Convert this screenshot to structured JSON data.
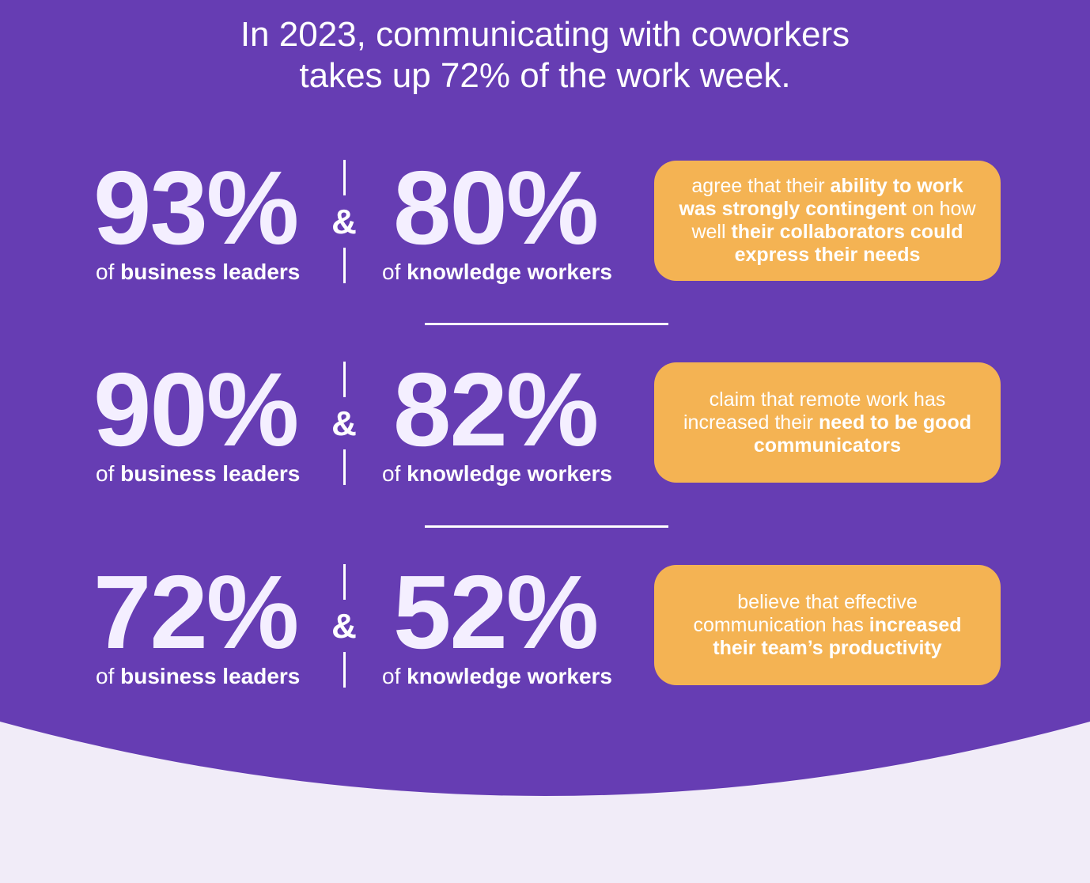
{
  "colors": {
    "panel_purple": "#663db3",
    "callout_orange": "#f4b353",
    "page_background": "#f1ecf8",
    "text_white": "#ffffff"
  },
  "header": {
    "title_line1": "In 2023, communicating with coworkers",
    "title_line2": "takes up 72% of the work week."
  },
  "stats": [
    {
      "leaders_percent": "93%",
      "leaders_prefix": "of ",
      "leaders_label": "business leaders",
      "connector": "&",
      "workers_percent": "80%",
      "workers_prefix": "of ",
      "workers_label": "knowledge workers",
      "callout": [
        {
          "text": "agree that their ",
          "bold": false
        },
        {
          "text": "ability to work was strongly contingent",
          "bold": true
        },
        {
          "text": " on how well ",
          "bold": false
        },
        {
          "text": "their collaborators could express their needs",
          "bold": true
        }
      ]
    },
    {
      "leaders_percent": "90%",
      "leaders_prefix": "of ",
      "leaders_label": "business leaders",
      "connector": "&",
      "workers_percent": "82%",
      "workers_prefix": "of ",
      "workers_label": "knowledge workers",
      "callout": [
        {
          "text": "claim that remote work has increased their ",
          "bold": false
        },
        {
          "text": "need to be good communicators",
          "bold": true
        }
      ]
    },
    {
      "leaders_percent": "72%",
      "leaders_prefix": "of ",
      "leaders_label": "business leaders",
      "connector": "&",
      "workers_percent": "52%",
      "workers_prefix": "of ",
      "workers_label": "knowledge workers",
      "callout": [
        {
          "text": "believe that effective communication has ",
          "bold": false
        },
        {
          "text": "increased their team’s productivity",
          "bold": true
        }
      ]
    }
  ]
}
